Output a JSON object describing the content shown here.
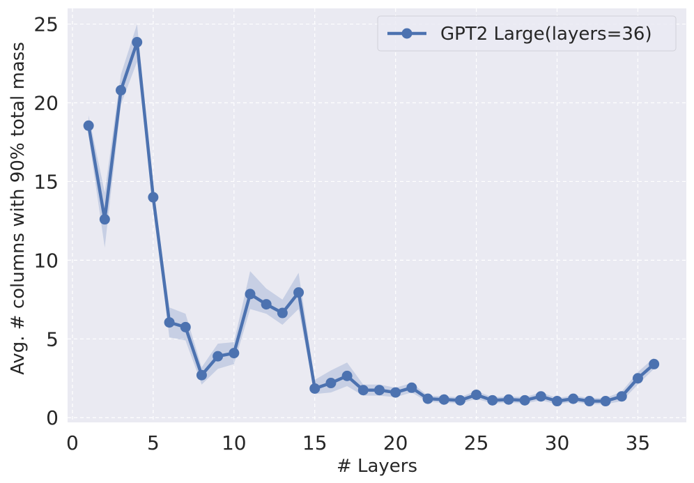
{
  "chart_data": {
    "type": "line",
    "title": "",
    "xlabel": "# Layers",
    "ylabel": "Avg. # columns with 90% total mass",
    "xlim": [
      -0.3,
      38.0
    ],
    "ylim": [
      -0.3,
      26.0
    ],
    "xticks": [
      0,
      5,
      10,
      15,
      20,
      25,
      30,
      35
    ],
    "yticks": [
      0,
      5,
      10,
      15,
      20,
      25
    ],
    "grid": true,
    "legend_position": "top-right",
    "colors": {
      "background": "#EAEAF2",
      "grid": "#ffffff",
      "line": "#4C72B0",
      "band": "#4C72B0"
    },
    "series": [
      {
        "name": "GPT2 Large(layers=36)",
        "x": [
          1,
          2,
          3,
          4,
          5,
          6,
          7,
          8,
          9,
          10,
          11,
          12,
          13,
          14,
          15,
          16,
          17,
          18,
          19,
          20,
          21,
          22,
          23,
          24,
          25,
          26,
          27,
          28,
          29,
          30,
          31,
          32,
          33,
          34,
          35,
          36
        ],
        "values": [
          18.55,
          12.6,
          20.8,
          23.85,
          14.0,
          6.05,
          5.75,
          2.7,
          3.9,
          4.1,
          7.85,
          7.2,
          6.65,
          7.95,
          1.85,
          2.2,
          2.65,
          1.75,
          1.75,
          1.6,
          1.9,
          1.2,
          1.15,
          1.1,
          1.45,
          1.1,
          1.15,
          1.1,
          1.35,
          1.05,
          1.2,
          1.05,
          1.05,
          1.35,
          2.5,
          3.4
        ],
        "lower": [
          17.9,
          10.8,
          19.9,
          22.6,
          13.5,
          5.1,
          4.9,
          2.1,
          3.1,
          3.4,
          6.9,
          6.6,
          5.9,
          6.9,
          1.5,
          1.6,
          2.0,
          1.4,
          1.4,
          1.3,
          1.6,
          1.0,
          0.95,
          0.9,
          1.2,
          0.9,
          0.95,
          0.9,
          1.1,
          0.85,
          1.0,
          0.85,
          0.85,
          1.05,
          2.1,
          3.1
        ],
        "upper": [
          19.2,
          14.3,
          21.8,
          25.0,
          14.5,
          7.0,
          6.6,
          3.2,
          4.7,
          4.8,
          9.3,
          8.2,
          7.5,
          9.2,
          2.4,
          3.0,
          3.5,
          2.1,
          2.1,
          1.9,
          2.2,
          1.4,
          1.35,
          1.3,
          1.7,
          1.3,
          1.35,
          1.3,
          1.6,
          1.25,
          1.4,
          1.25,
          1.25,
          1.65,
          2.9,
          3.8
        ]
      }
    ]
  }
}
